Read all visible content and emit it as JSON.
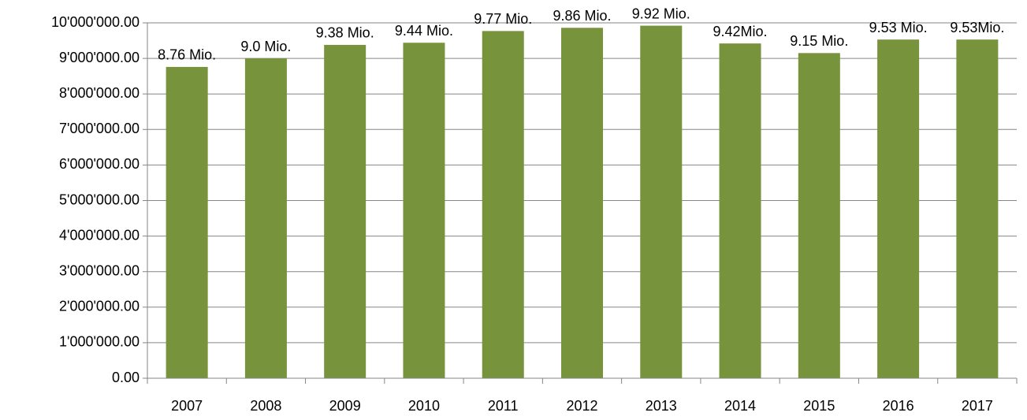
{
  "chart_data": {
    "type": "bar",
    "categories": [
      "2007",
      "2008",
      "2009",
      "2010",
      "2011",
      "2012",
      "2013",
      "2014",
      "2015",
      "2016",
      "2017"
    ],
    "values": [
      8760000,
      9000000,
      9380000,
      9440000,
      9770000,
      9860000,
      9920000,
      9420000,
      9150000,
      9530000,
      9530000
    ],
    "value_labels": [
      "8.76 Mio.",
      "9.0 Mio.",
      "9.38 Mio.",
      "9.44 Mio.",
      "9.77 Mio.",
      "9.86 Mio.",
      "9.92 Mio.",
      "9.42Mio.",
      "9.15 Mio.",
      "9.53 Mio.",
      "9.53Mio."
    ],
    "color": "#77933c",
    "ylim": [
      0,
      10000000
    ],
    "yticks": [
      {
        "value": 0,
        "label": "0.00"
      },
      {
        "value": 1000000,
        "label": "1'000'000.00"
      },
      {
        "value": 2000000,
        "label": "2'000'000.00"
      },
      {
        "value": 3000000,
        "label": "3'000'000.00"
      },
      {
        "value": 4000000,
        "label": "4'000'000.00"
      },
      {
        "value": 5000000,
        "label": "5'000'000.00"
      },
      {
        "value": 6000000,
        "label": "6'000'000.00"
      },
      {
        "value": 7000000,
        "label": "7'000'000.00"
      },
      {
        "value": 8000000,
        "label": "8'000'000.00"
      },
      {
        "value": 9000000,
        "label": "9'000'000.00"
      },
      {
        "value": 10000000,
        "label": "10'000'000.00"
      }
    ],
    "grid": true
  }
}
